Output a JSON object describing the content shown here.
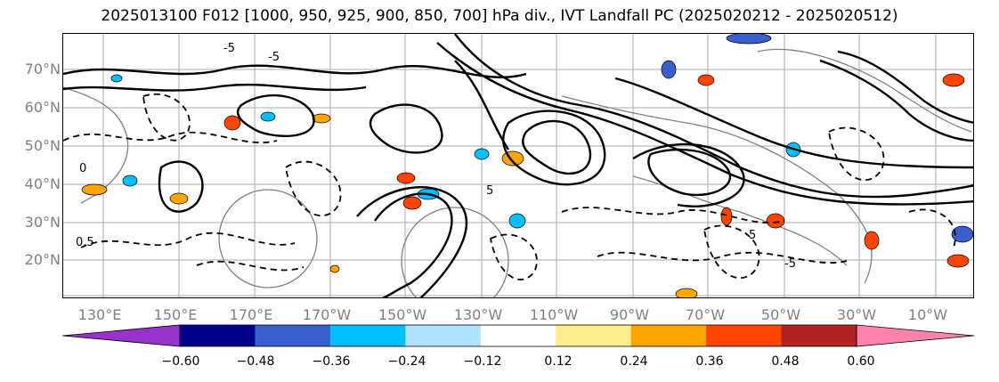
{
  "title": "2025013100 F012 [1000, 950, 925, 900, 850, 700] hPa div., IVT Landfall PC (2025020212 - 2025020512)",
  "lat_labels": [
    "70°N",
    "60°N",
    "50°N",
    "40°N",
    "30°N",
    "20°N"
  ],
  "lon_labels": [
    "130°E",
    "150°E",
    "170°E",
    "170°W",
    "150°W",
    "130°W",
    "110°W",
    "90°W",
    "70°W",
    "50°W",
    "30°W",
    "10°W"
  ],
  "colorbar": {
    "colors": [
      "#9932cc",
      "#00008b",
      "#3a5fcd",
      "#00bfff",
      "#b0e2ff",
      "#ffffff",
      "#ffec8b",
      "#ffa500",
      "#ff4500",
      "#b22222",
      "#ff82ab"
    ],
    "ticks": [
      "−0.60",
      "−0.48",
      "−0.36",
      "−0.24",
      "−0.12",
      "0.12",
      "0.24",
      "0.36",
      "0.48",
      "0.60"
    ]
  },
  "contour_labels": [
    "-5",
    "0",
    "5",
    "-5",
    "0.5",
    "-5",
    "5"
  ],
  "colors": {
    "coastline": "#808080",
    "grid": "#aaaaaa",
    "contour": "#000000"
  }
}
